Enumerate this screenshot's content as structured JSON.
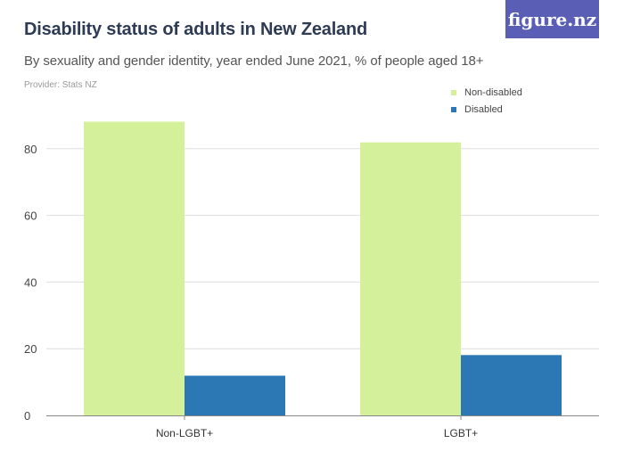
{
  "header": {
    "title": "Disability status of adults in New Zealand",
    "subtitle": "By sexuality and gender identity, year ended June 2021, % of people aged 18+",
    "provider": "Provider: Stats NZ",
    "logo_text": "figure.nz"
  },
  "colors": {
    "non_disabled": "#d4f09a",
    "disabled": "#2b78b4",
    "grid": "#dddddd",
    "axis": "#888888",
    "logo_bg": "#5a5fb5"
  },
  "chart_data": {
    "type": "bar",
    "title": "Disability status of adults in New Zealand",
    "subtitle": "By sexuality and gender identity, year ended June 2021, % of people aged 18+",
    "categories": [
      "Non-LGBT+",
      "LGBT+"
    ],
    "series": [
      {
        "name": "Non-disabled",
        "values": [
          88.1,
          81.9
        ]
      },
      {
        "name": "Disabled",
        "values": [
          11.9,
          18.1
        ]
      }
    ],
    "yticks": [
      0,
      20,
      40,
      60,
      80
    ],
    "ylim": [
      0,
      100
    ],
    "grid": true,
    "legend": "top-right"
  }
}
